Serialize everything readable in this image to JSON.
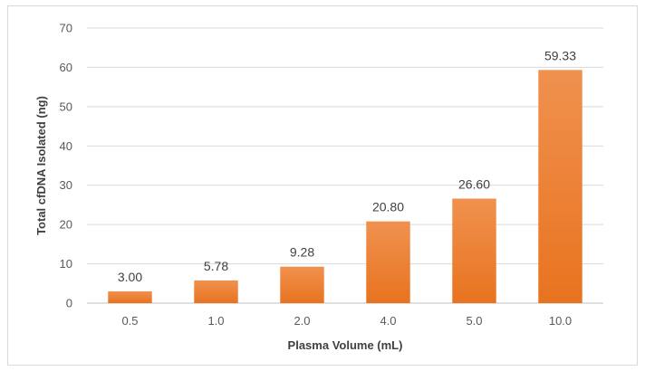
{
  "chart_data": {
    "type": "bar",
    "title": "",
    "xlabel": "Plasma Volume  (mL)",
    "ylabel": "Total cfDNA Isolated  (ng)",
    "categories": [
      "0.5",
      "1.0",
      "2.0",
      "4.0",
      "5.0",
      "10.0"
    ],
    "values": [
      3.0,
      5.78,
      9.28,
      20.8,
      26.6,
      59.33
    ],
    "data_labels": [
      "3.00",
      "5.78",
      "9.28",
      "20.80",
      "26.60",
      "59.33"
    ],
    "ylim": [
      0,
      70
    ],
    "yticks": [
      0,
      10,
      20,
      30,
      40,
      50,
      60,
      70
    ],
    "grid": true,
    "legend": "none",
    "bar_color_top": "#f0914f",
    "bar_color_bottom": "#e8731f"
  }
}
